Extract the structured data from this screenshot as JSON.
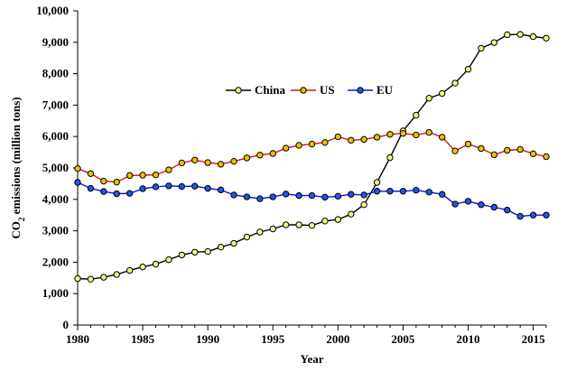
{
  "chart_data": {
    "type": "line",
    "title": "",
    "xlabel": "Year",
    "ylabel_main": "CO",
    "ylabel_sub": "2",
    "ylabel_rest": " emissions (million tons)",
    "xlim": [
      1980,
      2016
    ],
    "ylim": [
      0,
      10000
    ],
    "xticks": [
      1980,
      1985,
      1990,
      1995,
      2000,
      2005,
      2010,
      2015
    ],
    "xtick_labels": [
      "1980",
      "1985",
      "1990",
      "1995",
      "2000",
      "2005",
      "2010",
      "2015"
    ],
    "yticks": [
      0,
      1000,
      2000,
      3000,
      4000,
      5000,
      6000,
      7000,
      8000,
      9000,
      10000
    ],
    "ytick_labels": [
      "0",
      "1,000",
      "2,000",
      "3,000",
      "4,000",
      "5,000",
      "6,000",
      "7,000",
      "8,000",
      "9,000",
      "10,000"
    ],
    "legend_position": "upper-center",
    "x": [
      1980,
      1981,
      1982,
      1983,
      1984,
      1985,
      1986,
      1987,
      1988,
      1989,
      1990,
      1991,
      1992,
      1993,
      1994,
      1995,
      1996,
      1997,
      1998,
      1999,
      2000,
      2001,
      2002,
      2003,
      2004,
      2005,
      2006,
      2007,
      2008,
      2009,
      2010,
      2011,
      2012,
      2013,
      2014,
      2015,
      2016
    ],
    "series": [
      {
        "name": "China",
        "line_color": "#000000",
        "marker_fill": "#f2f28a",
        "values": [
          1480,
          1460,
          1520,
          1610,
          1740,
          1850,
          1940,
          2080,
          2230,
          2320,
          2340,
          2480,
          2600,
          2800,
          2960,
          3060,
          3190,
          3190,
          3170,
          3310,
          3360,
          3530,
          3830,
          4540,
          5330,
          6180,
          6680,
          7220,
          7370,
          7700,
          8140,
          8810,
          8990,
          9240,
          9250,
          9180,
          9130
        ]
      },
      {
        "name": "US",
        "line_color": "#dd1111",
        "marker_fill": "#f0c000",
        "values": [
          4980,
          4820,
          4580,
          4550,
          4760,
          4770,
          4780,
          4940,
          5160,
          5250,
          5170,
          5120,
          5210,
          5320,
          5410,
          5460,
          5630,
          5720,
          5760,
          5810,
          5990,
          5880,
          5910,
          5980,
          6070,
          6100,
          6050,
          6130,
          5980,
          5540,
          5760,
          5620,
          5420,
          5560,
          5590,
          5450,
          5360
        ]
      },
      {
        "name": "EU",
        "line_color": "#1111cc",
        "marker_fill": "#2255ee",
        "values": [
          4540,
          4350,
          4250,
          4180,
          4190,
          4340,
          4400,
          4430,
          4410,
          4420,
          4350,
          4300,
          4140,
          4080,
          4020,
          4080,
          4170,
          4120,
          4120,
          4070,
          4100,
          4160,
          4140,
          4260,
          4260,
          4260,
          4290,
          4230,
          4160,
          3850,
          3940,
          3830,
          3750,
          3660,
          3460,
          3500,
          3500
        ]
      }
    ]
  }
}
